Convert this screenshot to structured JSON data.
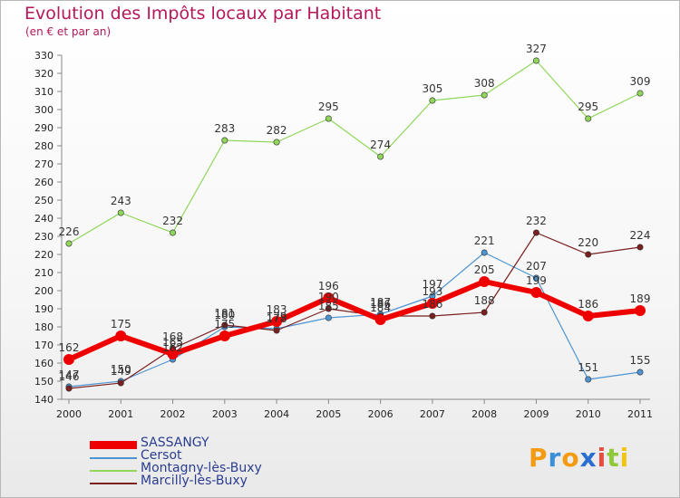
{
  "chart_data": {
    "type": "line",
    "title": "Evolution des Impôts locaux par Habitant",
    "subtitle": "(en € et par an)",
    "xlabel": "",
    "ylabel": "",
    "categories": [
      "2000",
      "2001",
      "2002",
      "2003",
      "2004",
      "2005",
      "2006",
      "2007",
      "2008",
      "2009",
      "2010",
      "2011"
    ],
    "ylim": [
      140,
      330
    ],
    "ystep": 10,
    "grid": false,
    "legend_position": "bottom-left",
    "series": [
      {
        "name": "SASSANGY",
        "color": "#ee0000",
        "values": [
          162,
          175,
          165,
          175,
          183,
          196,
          184,
          193,
          205,
          199,
          186,
          189
        ]
      },
      {
        "name": "Cersot",
        "color": "#4d94d2",
        "values": [
          147,
          150,
          162,
          180,
          179,
          185,
          187,
          197,
          221,
          207,
          151,
          155
        ]
      },
      {
        "name": "Montagny-lès-Buxy",
        "color": "#8fd65a",
        "values": [
          226,
          243,
          232,
          283,
          282,
          295,
          274,
          305,
          308,
          327,
          295,
          309
        ]
      },
      {
        "name": "Marcilly-lès-Buxy",
        "color": "#7b1f1f",
        "values": [
          146,
          149,
          168,
          181,
          178,
          190,
          186,
          186,
          188,
          232,
          220,
          224
        ]
      }
    ]
  },
  "logo": {
    "letters": [
      {
        "ch": "P",
        "color": "#f39c12"
      },
      {
        "ch": "r",
        "color": "#3a8fd8"
      },
      {
        "ch": "o",
        "color": "#f39c12"
      },
      {
        "ch": "x",
        "color": "#2a6fd0"
      },
      {
        "ch": "i",
        "color": "#e74c3c"
      },
      {
        "ch": "t",
        "color": "#8fc93a"
      },
      {
        "ch": "i",
        "color": "#f1c40f"
      }
    ]
  }
}
